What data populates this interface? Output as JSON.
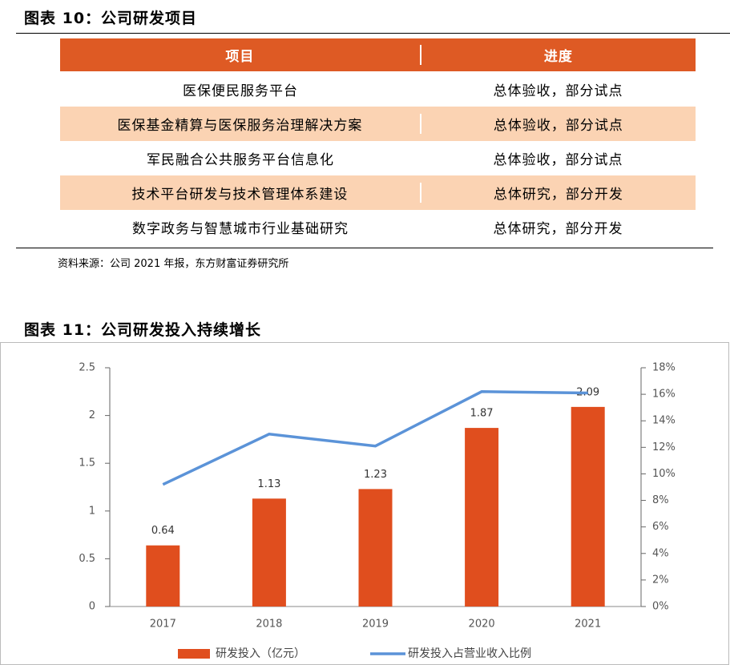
{
  "table_section": {
    "title": "图表 10：公司研发项目",
    "headers": [
      "项目",
      "进度"
    ],
    "rows": [
      [
        "医保便民服务平台",
        "总体验收，部分试点"
      ],
      [
        "医保基金精算与医保服务治理解决方案",
        "总体验收，部分试点"
      ],
      [
        "军民融合公共服务平台信息化",
        "总体验收，部分试点"
      ],
      [
        "技术平台研发与技术管理体系建设",
        "总体研究，部分开发"
      ],
      [
        "数字政务与智慧城市行业基础研究",
        "总体研究，部分开发"
      ]
    ],
    "source": "资料来源：公司 2021 年报，东方财富证券研究所"
  },
  "chart_data": {
    "type": "bar",
    "title": "图表 11：公司研发投入持续增长",
    "categories": [
      "2017",
      "2018",
      "2019",
      "2020",
      "2021"
    ],
    "series": [
      {
        "name": "研发投入（亿元）",
        "type": "bar",
        "color": "#e04e1e",
        "values": [
          0.64,
          1.13,
          1.23,
          1.87,
          2.09
        ]
      },
      {
        "name": "研发投入占营业收入比例",
        "type": "line",
        "axis": "y2",
        "color": "#5b93d8",
        "values": [
          9.2,
          13.0,
          12.1,
          16.2,
          16.1
        ]
      }
    ],
    "ylim": [
      0,
      2.5
    ],
    "yticks": [
      0,
      0.5,
      1,
      1.5,
      2,
      2.5
    ],
    "y2lim": [
      0,
      18
    ],
    "y2ticks": [
      {
        "value": 0,
        "label": "0%"
      },
      {
        "value": 2,
        "label": "2%"
      },
      {
        "value": 4,
        "label": "4%"
      },
      {
        "value": 6,
        "label": "6%"
      },
      {
        "value": 8,
        "label": "8%"
      },
      {
        "value": 10,
        "label": "10%"
      },
      {
        "value": 12,
        "label": "12%"
      },
      {
        "value": 14,
        "label": "14%"
      },
      {
        "value": 16,
        "label": "16%"
      },
      {
        "value": 18,
        "label": "18%"
      }
    ],
    "legend": "bottom"
  }
}
